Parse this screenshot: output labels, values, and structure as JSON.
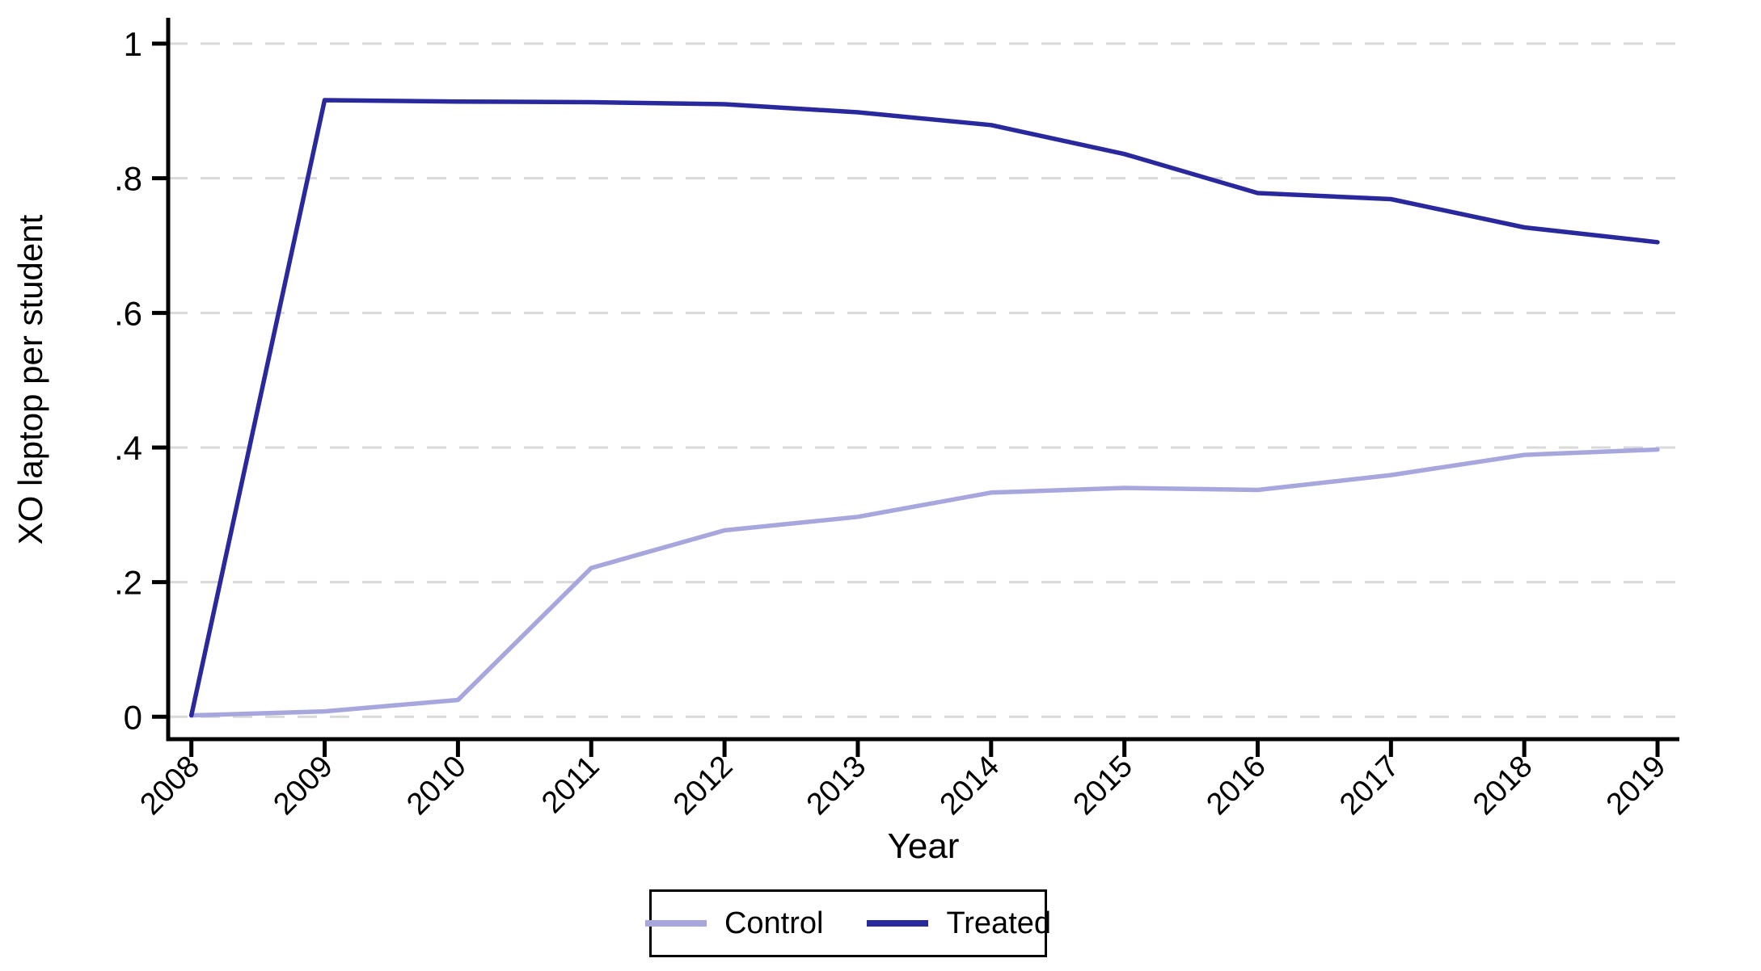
{
  "figure": {
    "y_axis_title": "XO laptop per student",
    "x_axis_title": "Year"
  },
  "legend": {
    "items": [
      {
        "label": "Control",
        "color": "#a7a7de"
      },
      {
        "label": "Treated",
        "color": "#29299d"
      }
    ]
  },
  "chart_data": {
    "type": "line",
    "title": "",
    "xlabel": "Year",
    "ylabel": "XO laptop per student",
    "x": [
      2008,
      2009,
      2010,
      2011,
      2012,
      2013,
      2014,
      2015,
      2016,
      2017,
      2018,
      2019
    ],
    "x_tick_labels": [
      "2008",
      "2009",
      "2010",
      "2011",
      "2012",
      "2013",
      "2014",
      "2015",
      "2016",
      "2017",
      "2018",
      "2019"
    ],
    "y_ticks": [
      0,
      0.2,
      0.4,
      0.6,
      0.8,
      1
    ],
    "y_tick_labels": [
      "0",
      ".2",
      ".4",
      ".6",
      ".8",
      "1"
    ],
    "ylim": [
      0,
      1
    ],
    "grid": "horizontal-dashed",
    "legend_position": "bottom-center",
    "colors": {
      "grid": "#d9d9d9",
      "axis": "#000000",
      "background": "#ffffff"
    },
    "series": [
      {
        "name": "Control",
        "color": "#a7a7de",
        "values": [
          0.002,
          0.008,
          0.025,
          0.221,
          0.277,
          0.297,
          0.333,
          0.34,
          0.337,
          0.359,
          0.389,
          0.397
        ]
      },
      {
        "name": "Treated",
        "color": "#29299d",
        "values": [
          0.002,
          0.916,
          0.914,
          0.913,
          0.91,
          0.898,
          0.879,
          0.836,
          0.778,
          0.769,
          0.727,
          0.705
        ]
      }
    ]
  }
}
